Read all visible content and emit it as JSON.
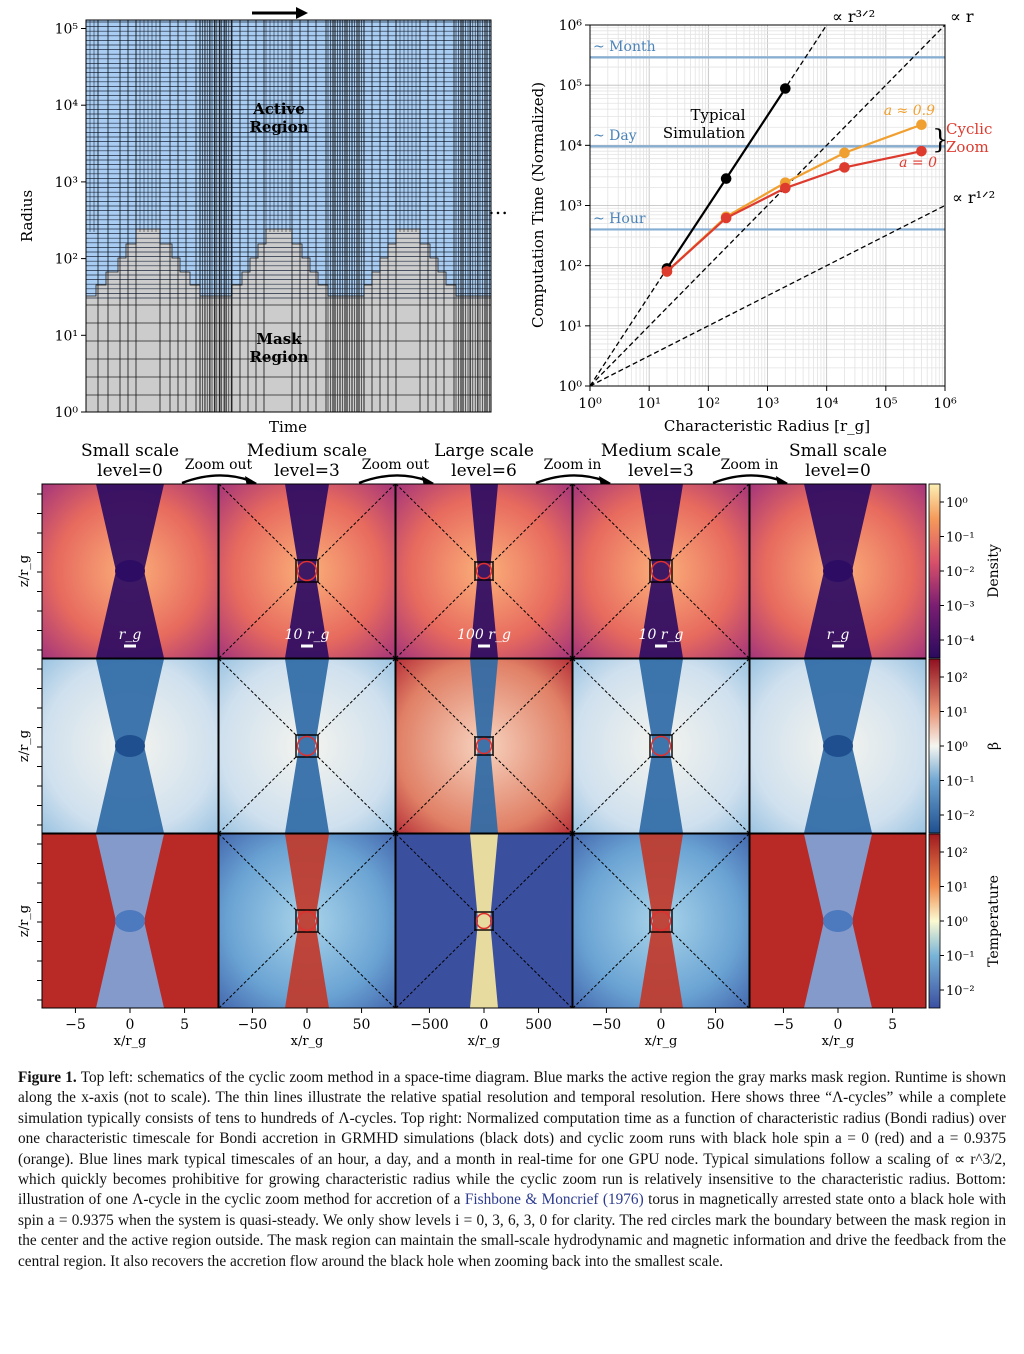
{
  "schematic": {
    "ylabel": "Radius",
    "xlabel": "Time",
    "yticks": [
      "10⁰",
      "10¹",
      "10²",
      "10³",
      "10⁴",
      "10⁵"
    ],
    "active_label": [
      "Active",
      "Region"
    ],
    "mask_label": [
      "Mask",
      "Region"
    ],
    "ellipsis": "…",
    "colors": {
      "active": "#a9cdf2",
      "mask": "#cccccc"
    }
  },
  "chart_data": {
    "type": "line",
    "xlabel": "Characteristic Radius [r_g]",
    "ylabel": "Computation Time (Normalized)",
    "xscale": "log",
    "yscale": "log",
    "xlim": [
      1,
      1000000
    ],
    "ylim": [
      1,
      1000000
    ],
    "xticks": [
      "10⁰",
      "10¹",
      "10²",
      "10³",
      "10⁴",
      "10⁵",
      "10⁶"
    ],
    "yticks": [
      "10⁰",
      "10¹",
      "10²",
      "10³",
      "10⁴",
      "10⁵",
      "10⁶"
    ],
    "grid": true,
    "hlines": [
      {
        "label": "~ Hour",
        "y": 400
      },
      {
        "label": "~ Day",
        "y": 9600
      },
      {
        "label": "~ Month",
        "y": 290000
      }
    ],
    "reference_lines": [
      {
        "label": "∝ r³ᐟ²",
        "slope": 1.5
      },
      {
        "label": "∝ r",
        "slope": 1
      },
      {
        "label": "∝ r¹ᐟ²",
        "slope": 0.5
      }
    ],
    "series": [
      {
        "name": "Typical Simulation",
        "color": "#000000",
        "x": [
          20,
          200,
          2000
        ],
        "y": [
          90,
          2800,
          88000
        ]
      },
      {
        "name": "a ≈ 0.9",
        "color": "#f0a030",
        "x": [
          20,
          200,
          2000,
          20000,
          400000
        ],
        "y": [
          80,
          650,
          2400,
          7500,
          22000
        ]
      },
      {
        "name": "a = 0",
        "color": "#de3b2f",
        "x": [
          20,
          200,
          2000,
          20000,
          400000
        ],
        "y": [
          80,
          620,
          1950,
          4300,
          8000
        ]
      }
    ],
    "annotations": {
      "typical": [
        "Typical",
        "Simulation"
      ],
      "cyclic": [
        "Cyclic",
        "Zoom"
      ],
      "brace": "}"
    }
  },
  "bottom": {
    "columns": [
      {
        "title": "Small scale",
        "level": "level=0",
        "scale_bar": "r_g",
        "xticks": [
          "−5",
          "0",
          "5"
        ]
      },
      {
        "title": "Medium scale",
        "level": "level=3",
        "scale_bar": "10 r_g",
        "xticks": [
          "−50",
          "0",
          "50"
        ]
      },
      {
        "title": "Large scale",
        "level": "level=6",
        "scale_bar": "100 r_g",
        "xticks": [
          "−500",
          "0",
          "500"
        ]
      },
      {
        "title": "Medium scale",
        "level": "level=3",
        "scale_bar": "10 r_g",
        "xticks": [
          "−50",
          "0",
          "50"
        ]
      },
      {
        "title": "Small scale",
        "level": "level=0",
        "scale_bar": "r_g",
        "xticks": [
          "−5",
          "0",
          "5"
        ]
      }
    ],
    "arrows": [
      "Zoom out",
      "Zoom out",
      "Zoom in",
      "Zoom in"
    ],
    "row_ylabel": "z/r_g",
    "col_xlabel": "x/r_g",
    "colorbars": [
      {
        "label": "Density",
        "ticks": [
          "10⁰",
          "10⁻¹",
          "10⁻²",
          "10⁻³",
          "10⁻⁴"
        ]
      },
      {
        "label": "β",
        "ticks": [
          "10²",
          "10¹",
          "10⁰",
          "10⁻¹",
          "10⁻²"
        ]
      },
      {
        "label": "Temperature",
        "ticks": [
          "10²",
          "10¹",
          "10⁰",
          "10⁻¹",
          "10⁻²"
        ]
      }
    ]
  },
  "caption": {
    "label": "Figure 1.",
    "text": "Top left: schematics of the cyclic zoom method in a space-time diagram. Blue marks the active region the gray marks mask region. Runtime is shown along the x-axis (not to scale). The thin lines illustrate the relative spatial resolution and temporal resolution. Here shows three “Λ-cycles” while a complete simulation typically consists of tens to hundreds of Λ-cycles. Top right: Normalized computation time as a function of characteristic radius (Bondi radius) over one characteristic timescale for Bondi accretion in GRMHD simulations (black dots) and cyclic zoom runs with black hole spin a = 0 (red) and a = 0.9375 (orange). Blue lines mark typical timescales of an hour, a day, and a month in real-time for one GPU node. Typical simulations follow a scaling of ∝ r^3/2, which quickly becomes prohibitive for growing characteristic radius while the cyclic zoom run is relatively insensitive to the characteristic radius. Bottom: illustration of one Λ-cycle in the cyclic zoom method for accretion of a",
    "citation": "Fishbone & Moncrief (1976)",
    "text_after": "torus in magnetically arrested state onto a black hole with spin a = 0.9375 when the system is quasi-steady. We only show levels i = 0, 3, 6, 3, 0 for clarity. The red circles mark the boundary between the mask region in the center and the active region outside. The mask region can maintain the small-scale hydrodynamic and magnetic information and drive the feedback from the central region. It also recovers the accretion flow around the black hole when zooming back into the smallest scale."
  }
}
